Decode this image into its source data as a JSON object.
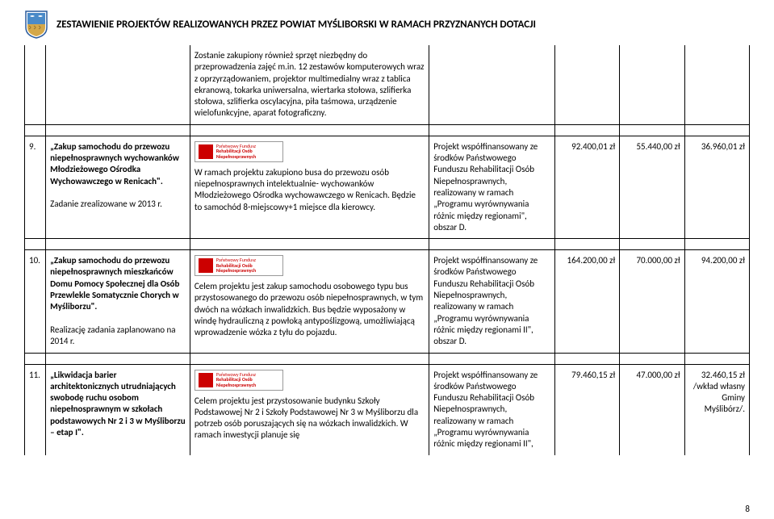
{
  "header": {
    "title": "ZESTAWIENIE PROJEKTÓW REALIZOWANYCH PRZEZ POWIAT MYŚLIBORSKI W RAMACH PRZYZNANYCH DOTACJI"
  },
  "logo": {
    "line1": "Państwowy Fundusz",
    "line2": "Rehabilitacji Osób",
    "line3": "Niepełnosprawnych"
  },
  "rows": [
    {
      "num": "",
      "title": "",
      "desc": "Zostanie zakupiony również sprzęt niezbędny do przeprowadzenia zajęć m.in. 12 zestawów komputerowych wraz z oprzyrządowaniem, projektor multimedialny wraz z tablica ekranową, tokarka uniwersalna, wiertarka stołowa, szlifierka stołowa, szlifierka oscylacyjna, piła taśmowa, urządzenie wielofunkcyjne, aparat fotograficzny.",
      "fund": "",
      "a1": "",
      "a2": "",
      "a3": ""
    },
    {
      "num": "9.",
      "title_bold": "„Zakup samochodu do przewozu niepełnosprawnych wychowanków Młodzieżowego Ośrodka Wychowawczego w Renicach\".",
      "title_rest": "Zadanie zrealizowane w 2013 r.",
      "desc": "W ramach projektu zakupiono  busa do przewozu osób niepełnosprawnych intelektualnie- wychowanków Młodzieżowego Ośrodka wychowawczego w Renicach. Będzie to samochód 8-miejscowy+1 miejsce dla kierowcy.",
      "fund": "Projekt współfinansowany ze środków Państwowego Funduszu Rehabilitacji Osób Niepełnosprawnych, realizowany w ramach „Programu wyrównywania różnic między regionami\", obszar D.",
      "a1": "92.400,01 zł",
      "a2": "55.440,00 zł",
      "a3": "36.960,01 zł",
      "has_logo": true
    },
    {
      "num": "10.",
      "title_bold": "„Zakup samochodu do przewozu niepełnosprawnych mieszkańców Domu Pomocy Społecznej dla Osób Przewlekle Somatycznie Chorych w Myśliborzu\".",
      "title_rest": "Realizację zadania zaplanowano na  2014 r.",
      "desc": "Celem projektu jest zakup samochodu osobowego typu bus przystosowanego do przewozu osób niepełnosprawnych, w tym dwóch na wózkach inwalidzkich. Bus będzie wyposażony w windę hydrauliczną z powłoką antypoślizgową, umożliwiającą wprowadzenie wózka z tyłu do pojazdu.",
      "fund": "Projekt współfinansowany ze środków Państwowego Funduszu Rehabilitacji Osób Niepełnosprawnych, realizowany w ramach „Programu wyrównywania różnic między regionami II\", obszar D.",
      "a1": "164.200,00 zł",
      "a2": "70.000,00 zł",
      "a3": "94.200,00 zł",
      "has_logo": true
    },
    {
      "num": "11.",
      "title_bold": "„Likwidacja barier architektonicznych utrudniających swobodę ruchu osobom niepełnosprawnym w szkołach podstawowych Nr 2 i 3 w Myśliborzu – etap I\".",
      "title_rest": "",
      "desc": "Celem projektu jest przystosowanie budynku Szkoły Podstawowej Nr 2 i Szkoły Podstawowej Nr 3 w Myśliborzu dla potrzeb osób poruszających się na wózkach inwalidzkich. W ramach inwestycji planuje się",
      "fund": "Projekt współfinansowany ze środków Państwowego Funduszu Rehabilitacji Osób Niepełnosprawnych, realizowany w ramach „Programu wyrównywania różnic między regionami II\",",
      "a1": "79.460,15 zł",
      "a2": "47.000,00 zł",
      "a3_multi": [
        "32.460,15 zł",
        "/wkład własny",
        "Gminy",
        "Myślibórz/."
      ],
      "has_logo": true,
      "open_bottom": true
    }
  ],
  "page_number": "8"
}
